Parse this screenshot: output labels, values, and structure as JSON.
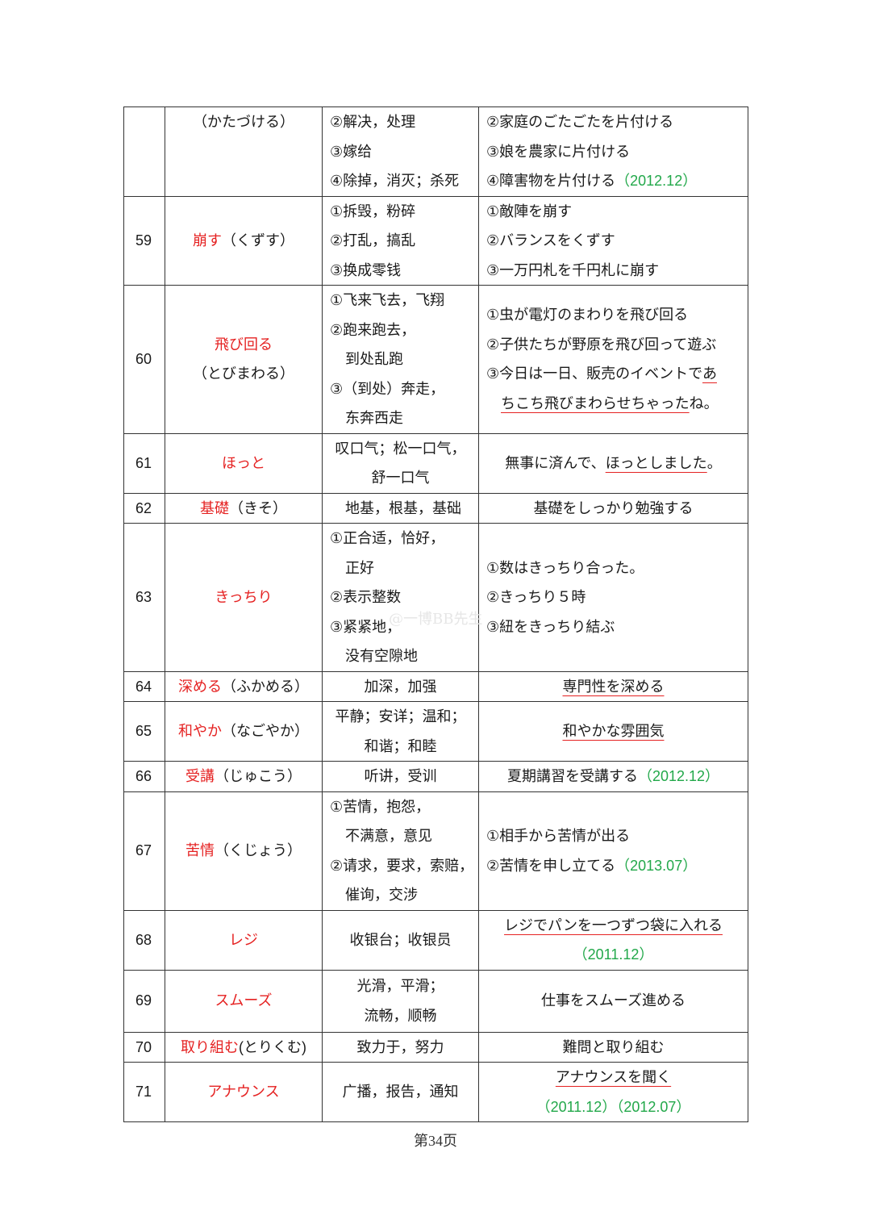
{
  "colors": {
    "highlight_red": "#e52222",
    "year_green": "#22a84a"
  },
  "rows": [
    {
      "num": "",
      "word": [
        {
          "t": "（かたづける）"
        }
      ],
      "meaning_align": "left",
      "meaning": [
        "②解决，处理",
        "③嫁给",
        "④除掉，消灭；杀死"
      ],
      "example_align": "left",
      "example": [
        [
          {
            "t": "②家庭のごたごたを片付ける"
          }
        ],
        [
          {
            "t": "③娘を農家に片付ける"
          }
        ],
        [
          {
            "t": "④障害物を片付ける"
          },
          {
            "t": "（2012.12）",
            "s": "green"
          }
        ]
      ]
    },
    {
      "num": "59",
      "word": [
        {
          "t": "崩す",
          "s": "red"
        },
        {
          "t": "（くずす）"
        }
      ],
      "meaning_align": "left",
      "meaning": [
        "①拆毁，粉碎",
        "②打乱，搞乱",
        "③换成零钱"
      ],
      "example_align": "left",
      "example": [
        [
          {
            "t": "①敵陣を崩す"
          }
        ],
        [
          {
            "t": "②バランスをくずす"
          }
        ],
        [
          {
            "t": "③一万円札を千円札に崩す"
          }
        ]
      ]
    },
    {
      "num": "60",
      "word": [
        {
          "t": "飛び回る",
          "s": "red",
          "br": true
        },
        {
          "t": "（とびまわる）"
        }
      ],
      "meaning_align": "left",
      "meaning": [
        "①飞来飞去，飞翔",
        "②跑来跑去，",
        "到处乱跑",
        "③（到处）奔走，",
        "东奔西走"
      ],
      "example_align": "left",
      "example": [
        [
          {
            "t": "①虫が電灯のまわりを飛び回る"
          }
        ],
        [
          {
            "t": "②子供たちが野原を飛び回って遊ぶ"
          }
        ],
        [
          {
            "t": "③今日は一日、販売のイベントで"
          },
          {
            "t": "あ",
            "s": "underline"
          }
        ],
        [
          {
            "t": "　"
          },
          {
            "t": "ちこち飛びまわらせちゃった",
            "s": "underline"
          },
          {
            "t": "ね。"
          }
        ]
      ]
    },
    {
      "num": "61",
      "word": [
        {
          "t": "ほっと",
          "s": "red"
        }
      ],
      "meaning_align": "center",
      "meaning": [
        "叹口气；松一口气，",
        "舒一口气"
      ],
      "example_align": "center",
      "example": [
        [
          {
            "t": "無事に済んで、"
          },
          {
            "t": "ほっとしました",
            "s": "underline"
          },
          {
            "t": "。"
          }
        ]
      ]
    },
    {
      "num": "62",
      "word": [
        {
          "t": "基礎",
          "s": "red"
        },
        {
          "t": "（きそ）"
        }
      ],
      "meaning_align": "left",
      "meaning": [
        "地基，根基，基础"
      ],
      "example_align": "center",
      "example": [
        [
          {
            "t": "基礎をしっかり勉強する"
          }
        ]
      ]
    },
    {
      "num": "63",
      "word": [
        {
          "t": "きっちり",
          "s": "red"
        }
      ],
      "meaning_align": "left",
      "meaning": [
        "①正合适，恰好，",
        "正好",
        "②表示整数",
        "③紧紧地，",
        "没有空隙地"
      ],
      "example_align": "left",
      "example": [
        [
          {
            "t": "①数はきっちり合った。"
          }
        ],
        [
          {
            "t": "②きっちり５時"
          }
        ],
        [
          {
            "t": "③紐をきっちり結ぶ"
          }
        ]
      ]
    },
    {
      "num": "64",
      "word": [
        {
          "t": "深める",
          "s": "red"
        },
        {
          "t": "（ふかめる）"
        }
      ],
      "meaning_align": "center",
      "meaning": [
        "加深，加强"
      ],
      "example_align": "center",
      "example": [
        [
          {
            "t": "専門性を深める",
            "s": "underline"
          }
        ]
      ]
    },
    {
      "num": "65",
      "word": [
        {
          "t": "和やか",
          "s": "red"
        },
        {
          "t": "（なごやか）"
        }
      ],
      "meaning_align": "center",
      "meaning": [
        "平静；安详；温和；",
        "和谐；和睦"
      ],
      "example_align": "center",
      "example": [
        [
          {
            "t": "和やかな雰囲気",
            "s": "underline"
          }
        ]
      ]
    },
    {
      "num": "66",
      "word": [
        {
          "t": "受講",
          "s": "red"
        },
        {
          "t": "（じゅこう）"
        }
      ],
      "meaning_align": "center",
      "meaning": [
        "听讲，受训"
      ],
      "example_align": "center",
      "example": [
        [
          {
            "t": "夏期講習を受講する"
          },
          {
            "t": "（2012.12）",
            "s": "green"
          }
        ]
      ]
    },
    {
      "num": "67",
      "word": [
        {
          "t": "苦情",
          "s": "red"
        },
        {
          "t": "（くじょう）"
        }
      ],
      "meaning_align": "left",
      "meaning": [
        "①苦情，抱怨，",
        "不满意，意见",
        "②请求，要求，索赔，",
        "催询，交涉"
      ],
      "example_align": "left",
      "example": [
        [
          {
            "t": "①相手から苦情が出る"
          }
        ],
        [
          {
            "t": "②苦情を申し立てる"
          },
          {
            "t": "（2013.07）",
            "s": "green"
          }
        ]
      ]
    },
    {
      "num": "68",
      "word": [
        {
          "t": "レジ",
          "s": "red"
        }
      ],
      "meaning_align": "center",
      "meaning": [
        "收银台；收银员"
      ],
      "example_align": "center",
      "example": [
        [
          {
            "t": "レジでパンを一つずつ袋に入れる",
            "s": "underline"
          }
        ],
        [
          {
            "t": "（2011.12）",
            "s": "green"
          }
        ]
      ]
    },
    {
      "num": "69",
      "word": [
        {
          "t": "スムーズ",
          "s": "red"
        }
      ],
      "meaning_align": "center",
      "meaning": [
        "光滑，平滑；",
        "流畅，顺畅"
      ],
      "example_align": "center",
      "example": [
        [
          {
            "t": "仕事をスムーズ進める"
          }
        ]
      ]
    },
    {
      "num": "70",
      "word": [
        {
          "t": "取り組む",
          "s": "red"
        },
        {
          "t": "(とりくむ)"
        }
      ],
      "meaning_align": "center",
      "meaning": [
        "致力于，努力"
      ],
      "example_align": "center",
      "example": [
        [
          {
            "t": "難問と取り組む"
          }
        ]
      ]
    },
    {
      "num": "71",
      "word": [
        {
          "t": "アナウンス",
          "s": "red"
        }
      ],
      "meaning_align": "center",
      "meaning": [
        "广播，报告，通知"
      ],
      "example_align": "center",
      "example": [
        [
          {
            "t": "アナウンスを聞く",
            "s": "underline"
          }
        ],
        [
          {
            "t": "（2011.12）（2012.07）",
            "s": "green"
          }
        ]
      ]
    }
  ],
  "watermark": "@一博BB先生",
  "footer": {
    "page_label": "第34页"
  }
}
